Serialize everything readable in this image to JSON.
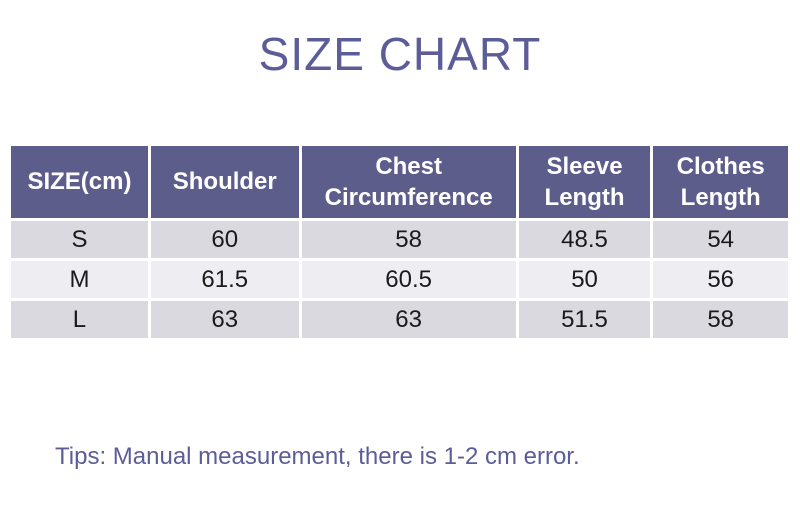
{
  "chart_data": {
    "type": "table",
    "title": "SIZE CHART",
    "columns": [
      "SIZE(cm)",
      "Shoulder",
      "Chest Circumference",
      "Sleeve Length",
      "Clothes Length"
    ],
    "rows": [
      [
        "S",
        60,
        58,
        48.5,
        54
      ],
      [
        "M",
        61.5,
        60.5,
        50,
        56
      ],
      [
        "L",
        63,
        63,
        51.5,
        58
      ]
    ],
    "note": "Tips: Manual measurement, there is 1-2 cm error.",
    "layout_hints": {
      "column_width_percents": [
        17.9,
        19.3,
        28.0,
        17.2,
        17.6
      ],
      "header_rows": 1,
      "row_striping": "odd rows gray, even rows lighter"
    }
  },
  "colors": {
    "page_bg": "#ffffff",
    "title_text": "#5c5c99",
    "header_bg": "#5d5d8b",
    "header_text": "#ffffff",
    "row_odd_bg": "#d9d9df",
    "row_even_bg": "#ededf2",
    "cell_text": "#1a1a1a",
    "tips_text": "#5c5c99",
    "grid_gap": "#ffffff"
  }
}
